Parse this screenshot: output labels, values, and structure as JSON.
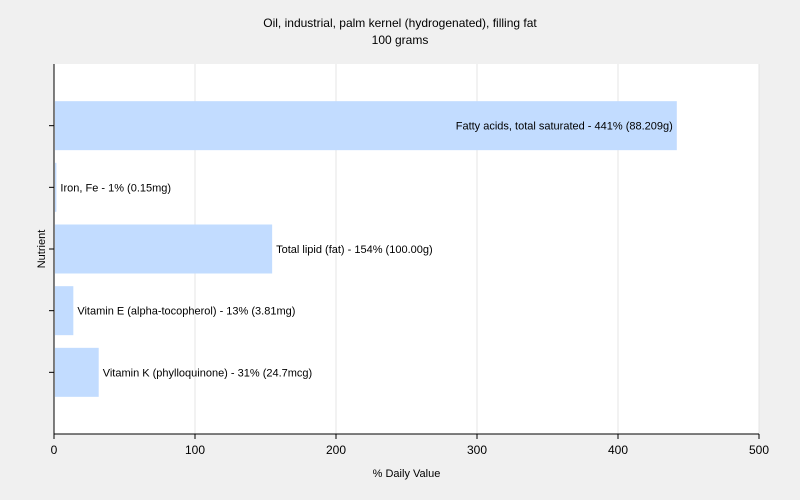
{
  "chart_data": {
    "type": "bar",
    "orientation": "horizontal",
    "title": "Oil, industrial, palm kernel (hydrogenated), filling fat",
    "subtitle": "100 grams",
    "xlabel": "% Daily Value",
    "ylabel": "Nutrient",
    "xlim": [
      0,
      500
    ],
    "xticks": [
      "0",
      "100",
      "200",
      "300",
      "400",
      "500"
    ],
    "grid": true,
    "bar_color": "#c2dcff",
    "categories": [
      "Fatty acids, total saturated",
      "Iron, Fe",
      "Total lipid (fat)",
      "Vitamin E (alpha-tocopherol)",
      "Vitamin K (phylloquinone)"
    ],
    "values": [
      441,
      1,
      154,
      13,
      31
    ],
    "data_labels": [
      "Fatty acids, total saturated - 441% (88.209g)",
      "Iron, Fe - 1% (0.15mg)",
      "Total lipid (fat) - 154% (100.00g)",
      "Vitamin E (alpha-tocopherol) - 13% (3.81mg)",
      "Vitamin K (phylloquinone) - 31% (24.7mcg)"
    ]
  }
}
